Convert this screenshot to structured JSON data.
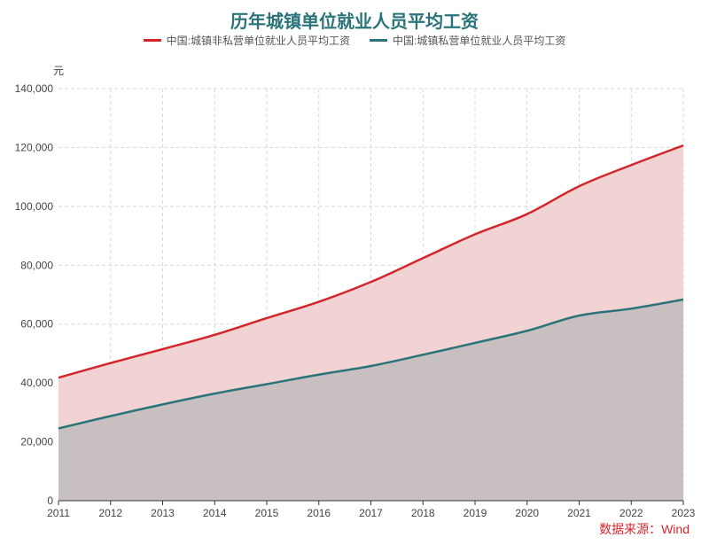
{
  "chart_data": {
    "type": "area",
    "title": "历年城镇单位就业人员平均工资",
    "ylabel": "元",
    "ylim": [
      0,
      140000
    ],
    "yticks": [
      0,
      20000,
      40000,
      60000,
      80000,
      100000,
      120000,
      140000
    ],
    "ytick_labels": [
      "0",
      "20,000",
      "40,000",
      "60,000",
      "80,000",
      "100,000",
      "120,000",
      "140,000"
    ],
    "x": [
      "2011",
      "2012",
      "2013",
      "2014",
      "2015",
      "2016",
      "2017",
      "2018",
      "2019",
      "2020",
      "2021",
      "2022",
      "2023"
    ],
    "grid": true,
    "legend_position": "top",
    "series": [
      {
        "name": "中国:城镇非私营单位就业人员平均工资",
        "color": "#d2262c",
        "fill": "#f2d3d4",
        "values": [
          41799,
          46769,
          51483,
          56360,
          62029,
          67569,
          74318,
          82413,
          90501,
          97379,
          106837,
          114029,
          120698
        ]
      },
      {
        "name": "中国:城镇私营单位就业人员平均工资",
        "color": "#2a7479",
        "fill": "#c8bfc0",
        "values": [
          24556,
          28752,
          32706,
          36390,
          39589,
          42833,
          45761,
          49575,
          53604,
          57727,
          62884,
          65237,
          68340
        ]
      }
    ],
    "source": "数据来源：Wind"
  }
}
